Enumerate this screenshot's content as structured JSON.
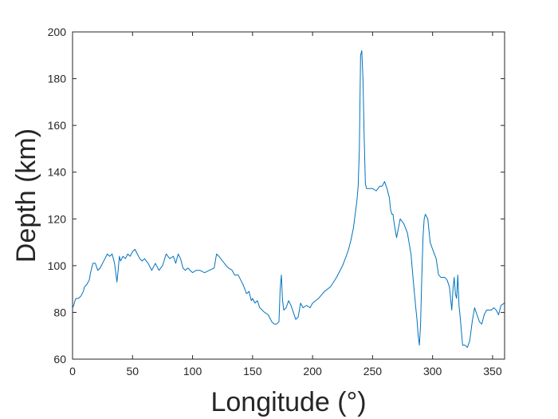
{
  "chart_data": {
    "type": "line",
    "title": "",
    "xlabel": "Longitude (°)",
    "ylabel": "Depth (km)",
    "xlim": [
      0,
      360
    ],
    "ylim": [
      60,
      200
    ],
    "xticks": [
      0,
      50,
      100,
      150,
      200,
      250,
      300,
      350
    ],
    "yticks": [
      60,
      80,
      100,
      120,
      140,
      160,
      180,
      200
    ],
    "grid": false,
    "box": true,
    "line_color": "#0072BD",
    "series": [
      {
        "x": [
          0,
          1,
          2,
          3,
          5,
          7,
          9,
          10,
          12,
          14,
          15,
          17,
          19,
          21,
          23,
          25,
          27,
          29,
          31,
          33,
          35,
          37,
          38,
          39,
          40,
          42,
          44,
          46,
          48,
          50,
          52,
          54,
          56,
          58,
          60,
          63,
          66,
          69,
          72,
          75,
          78,
          81,
          84,
          86,
          88,
          90,
          92,
          94,
          96,
          98,
          100,
          103,
          106,
          110,
          114,
          118,
          120,
          122,
          125,
          128,
          130,
          133,
          135,
          138,
          140,
          142,
          145,
          147,
          149,
          150,
          152,
          154,
          156,
          158,
          160,
          163,
          166,
          168,
          170,
          172,
          173,
          174,
          175,
          176,
          178,
          180,
          182,
          184,
          186,
          188,
          190,
          192,
          195,
          198,
          200,
          205,
          210,
          215,
          220,
          225,
          228,
          230,
          232,
          234,
          235,
          236,
          237,
          238,
          239,
          240,
          241,
          242,
          243,
          244,
          245,
          247,
          250,
          253,
          256,
          258,
          260,
          262,
          264,
          265,
          266,
          267,
          268,
          270,
          273,
          276,
          279,
          282,
          284,
          286,
          287,
          288,
          289,
          290,
          291,
          292,
          293,
          294,
          296,
          298,
          300,
          303,
          305,
          307,
          310,
          312,
          314,
          316,
          317,
          318,
          319,
          320,
          321,
          322,
          323,
          324,
          325,
          327,
          329,
          331,
          333,
          335,
          337,
          339,
          341,
          343,
          345,
          347,
          349,
          351,
          353,
          355,
          357,
          360
        ],
        "y": [
          82,
          83,
          85,
          86,
          86,
          87,
          89,
          91,
          92,
          94,
          97,
          101,
          101,
          98,
          99,
          101,
          103,
          105,
          104,
          105,
          101,
          93,
          98,
          104,
          102,
          104,
          103,
          105,
          104,
          106,
          107,
          105,
          103,
          102,
          103,
          101,
          98,
          101,
          98,
          100,
          105,
          103,
          104,
          101,
          105,
          103,
          99,
          98,
          99,
          98,
          97,
          98,
          98,
          97,
          98,
          99,
          105,
          104,
          102,
          100,
          99,
          98,
          96,
          96,
          94,
          92,
          88,
          89,
          85,
          86,
          84,
          85,
          82,
          81,
          80,
          79,
          76,
          75,
          75,
          76,
          90,
          96,
          85,
          81,
          82,
          85,
          83,
          80,
          77,
          78,
          84,
          82,
          83,
          82,
          84,
          86,
          89,
          91,
          95,
          100,
          104,
          107,
          111,
          116,
          120,
          124,
          128,
          134,
          150,
          190,
          192,
          180,
          155,
          135,
          133,
          133,
          133,
          132,
          134,
          134,
          136,
          133,
          129,
          124,
          122,
          122,
          118,
          112,
          120,
          118,
          114,
          105,
          93,
          82,
          77,
          70,
          66,
          75,
          95,
          112,
          120,
          122,
          120,
          110,
          107,
          103,
          96,
          95,
          95,
          94,
          91,
          81,
          90,
          95,
          88,
          86,
          96,
          83,
          78,
          72,
          66,
          66,
          65,
          68,
          76,
          82,
          79,
          76,
          75,
          79,
          81,
          81,
          81,
          82,
          81,
          79,
          83,
          84
        ]
      }
    ]
  }
}
